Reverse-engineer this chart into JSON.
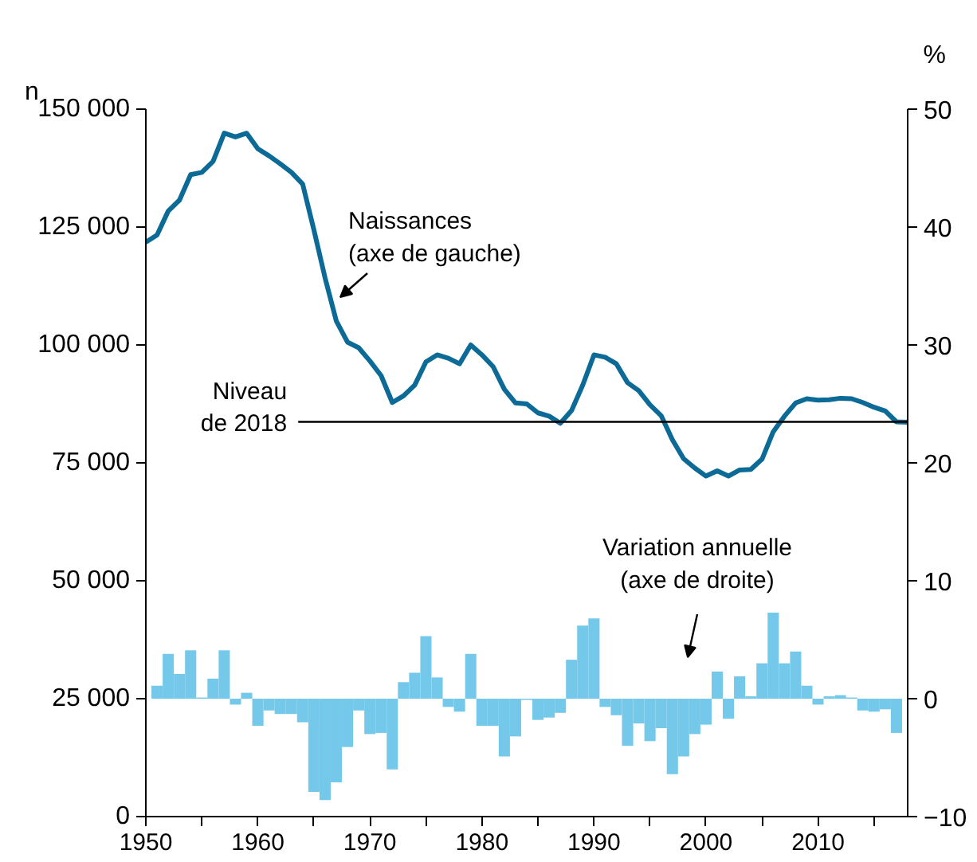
{
  "chart_data": {
    "type": "line",
    "ylabel": "n",
    "y2label": "%",
    "x": [
      1950,
      1951,
      1952,
      1953,
      1954,
      1955,
      1956,
      1957,
      1958,
      1959,
      1960,
      1961,
      1962,
      1963,
      1964,
      1965,
      1966,
      1967,
      1968,
      1969,
      1970,
      1971,
      1972,
      1973,
      1974,
      1975,
      1976,
      1977,
      1978,
      1979,
      1980,
      1981,
      1982,
      1983,
      1984,
      1985,
      1986,
      1987,
      1988,
      1989,
      1990,
      1991,
      1992,
      1993,
      1994,
      1995,
      1996,
      1997,
      1998,
      1999,
      2000,
      2001,
      2002,
      2003,
      2004,
      2005,
      2006,
      2007,
      2008,
      2009,
      2010,
      2011,
      2012,
      2013,
      2014,
      2015,
      2016,
      2017,
      2018
    ],
    "series": [
      {
        "color": "#0b6a96",
        "values": [
          121800,
          123300,
          128400,
          130700,
          136100,
          136600,
          138900,
          144900,
          144100,
          144900,
          141600,
          140100,
          138400,
          136600,
          134100,
          124400,
          114200,
          105100,
          100600,
          99400,
          96600,
          93500,
          87800,
          89200,
          91500,
          96400,
          97900,
          97200,
          96000,
          100000,
          97900,
          95400,
          90600,
          87700,
          87500,
          85600,
          84900,
          83400,
          86100,
          91500,
          97900,
          97400,
          96000,
          92000,
          90300,
          87300,
          85000,
          79900,
          75900,
          73900,
          72200,
          73300,
          72200,
          73500,
          73600,
          75800,
          81600,
          84900,
          87700,
          88600,
          88300,
          88400,
          88700,
          88600,
          87800,
          86800,
          86000,
          83700,
          83600
        ]
      },
      {
        "type": "bar",
        "axis": "y2",
        "color": "#74c8ea",
        "x": [
          1951,
          1952,
          1953,
          1954,
          1955,
          1956,
          1957,
          1958,
          1959,
          1960,
          1961,
          1962,
          1963,
          1964,
          1965,
          1966,
          1967,
          1968,
          1969,
          1970,
          1971,
          1972,
          1973,
          1974,
          1975,
          1976,
          1977,
          1978,
          1979,
          1980,
          1981,
          1982,
          1983,
          1984,
          1985,
          1986,
          1987,
          1988,
          1989,
          1990,
          1991,
          1992,
          1993,
          1994,
          1995,
          1996,
          1997,
          1998,
          1999,
          2000,
          2001,
          2002,
          2003,
          2004,
          2005,
          2006,
          2007,
          2008,
          2009,
          2010,
          2011,
          2012,
          2013,
          2014,
          2015,
          2016,
          2017
        ],
        "values": [
          1.1,
          3.8,
          2.1,
          4.1,
          0.1,
          1.7,
          4.1,
          -0.5,
          0.5,
          -2.3,
          -1.0,
          -1.3,
          -1.3,
          -2.0,
          -7.9,
          -8.6,
          -7.1,
          -4.1,
          -1.0,
          -3.0,
          -2.9,
          -6.0,
          1.4,
          2.2,
          5.3,
          1.8,
          -0.7,
          -1.1,
          3.8,
          -2.3,
          -2.3,
          -4.9,
          -3.2,
          -0.1,
          -1.8,
          -1.6,
          -1.2,
          3.3,
          6.2,
          6.8,
          -0.7,
          -1.4,
          -4.0,
          -2.1,
          -3.6,
          -2.5,
          -6.4,
          -4.9,
          -3.0,
          -2.2,
          2.3,
          -1.7,
          1.9,
          0.2,
          3.0,
          7.3,
          3.0,
          4.0,
          1.1,
          -0.5,
          0.2,
          0.3,
          0.1,
          -1.0,
          -1.1,
          -0.9,
          -2.9
        ]
      }
    ],
    "xlim": [
      1950,
      2018
    ],
    "xticks": [
      1950,
      {
        "value": 1955,
        "label": null
      },
      1960,
      {
        "value": 1965,
        "label": null
      },
      1970,
      {
        "value": 1975,
        "label": null
      },
      1980,
      {
        "value": 1985,
        "label": null
      },
      1990,
      {
        "value": 1995,
        "label": null
      },
      2000,
      {
        "value": 2005,
        "label": null
      },
      2010,
      {
        "value": 2015,
        "label": null
      }
    ],
    "ylim": [
      0,
      150000
    ],
    "yticks": [
      0,
      {
        "value": 25000,
        "label": "25 000"
      },
      {
        "value": 50000,
        "label": "50 000"
      },
      {
        "value": 75000,
        "label": "75 000"
      },
      {
        "value": 100000,
        "label": "100 000"
      },
      {
        "value": 125000,
        "label": "125 000"
      },
      {
        "value": 150000,
        "label": "150 000"
      }
    ],
    "y2lim": [
      -10,
      50
    ],
    "y2ticks": [
      {
        "value": -10,
        "label": "−10"
      },
      0,
      10,
      20,
      30,
      40,
      50
    ],
    "ref_lines": [
      {
        "axis": "y",
        "value": 83700,
        "label": "Niveau\nde 2018",
        "color": "#000000"
      }
    ],
    "annotations": [
      "Naissances\n(axe de gauche)",
      "Variation annuelle\n(axe de droite)"
    ],
    "grid": false
  }
}
